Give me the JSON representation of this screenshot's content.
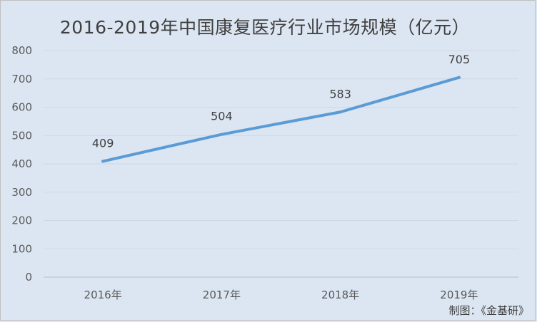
{
  "chart_data": {
    "type": "line",
    "title": "2016-2019年中国康复医疗行业市场规模（亿元）",
    "categories": [
      "2016年",
      "2017年",
      "2018年",
      "2019年"
    ],
    "series": [
      {
        "values": [
          409,
          504,
          583,
          705
        ]
      }
    ],
    "data_labels": [
      "409",
      "504",
      "583",
      "705"
    ],
    "ylim": [
      0,
      800
    ],
    "yticks": [
      0,
      100,
      200,
      300,
      400,
      500,
      600,
      700,
      800
    ],
    "grid": true,
    "line_color": "#5b9bd5"
  },
  "source": "制图：《金基研》"
}
